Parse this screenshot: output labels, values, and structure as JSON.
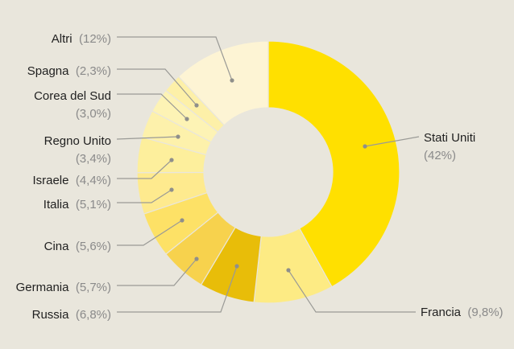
{
  "chart_data": {
    "type": "pie",
    "variant": "donut",
    "title": "",
    "slices": [
      {
        "name": "Stati Uniti",
        "label": "(42%)",
        "value": 42.0,
        "color": "#ffe000"
      },
      {
        "name": "Francia",
        "label": "(9,8%)",
        "value": 9.8,
        "color": "#fdeb84"
      },
      {
        "name": "Russia",
        "label": "(6,8%)",
        "value": 6.8,
        "color": "#e8bd09"
      },
      {
        "name": "Germania",
        "label": "(5,7%)",
        "value": 5.7,
        "color": "#f7d24d"
      },
      {
        "name": "Cina",
        "label": "(5,6%)",
        "value": 5.6,
        "color": "#fde166"
      },
      {
        "name": "Italia",
        "label": "(5,1%)",
        "value": 5.1,
        "color": "#feea8e"
      },
      {
        "name": "Israele",
        "label": "(4,4%)",
        "value": 4.4,
        "color": "#fdef9c"
      },
      {
        "name": "Regno Unito",
        "label": "(3,4%)",
        "value": 3.4,
        "color": "#fdf1ab"
      },
      {
        "name": "Corea del Sud",
        "label": "(3,0%)",
        "value": 3.0,
        "color": "#fdf3b5"
      },
      {
        "name": "Spagna",
        "label": "(2,3%)",
        "value": 2.3,
        "color": "#fdf0a8"
      },
      {
        "name": "Altri",
        "label": "(12%)",
        "value": 12.0,
        "color": "#fdf4d4"
      }
    ]
  }
}
